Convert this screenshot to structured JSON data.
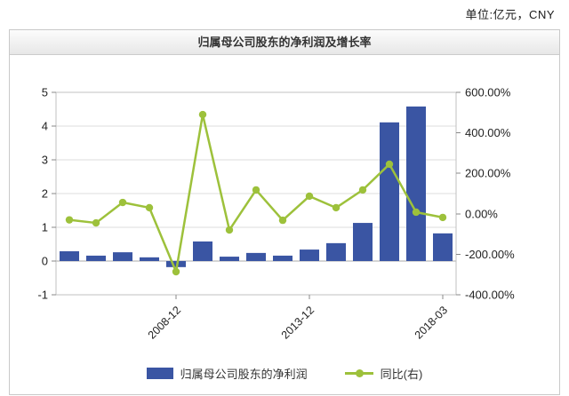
{
  "unit_label": "单位:亿元，CNY",
  "panel": {
    "title": "归属母公司股东的净利润及增长率"
  },
  "legend": {
    "bar_label": "归属母公司股东的净利润",
    "line_label": "同比(右)"
  },
  "colors": {
    "bar": "#3A55A3",
    "line": "#9DC13B",
    "grid": "#DDDDDD",
    "border": "#C0C0C0",
    "zero_line": "#AAAAAA",
    "tick": "#888888",
    "axis_text": "#222222",
    "title_text": "#333333"
  },
  "chart_data": {
    "type": "bar",
    "title": "归属母公司股东的净利润及增长率",
    "categories": [
      "",
      "",
      "",
      "",
      "2008-12",
      "",
      "",
      "",
      "",
      "2013-12",
      "",
      "",
      "",
      "",
      "2018-03"
    ],
    "series": [
      {
        "name": "归属母公司股东的净利润",
        "type": "bar",
        "axis": "left",
        "values": [
          0.29,
          0.16,
          0.26,
          0.11,
          -0.18,
          0.58,
          0.13,
          0.24,
          0.16,
          0.34,
          0.53,
          1.13,
          4.11,
          4.58,
          0.82
        ]
      },
      {
        "name": "同比(右)",
        "type": "line",
        "axis": "right",
        "unit": "%",
        "values": [
          -30,
          -45,
          56,
          30,
          -286,
          490,
          -80,
          118,
          -32,
          87,
          30,
          118,
          245,
          8,
          -18
        ]
      }
    ],
    "left_axis": {
      "min": -1,
      "max": 5,
      "ticks": [
        5,
        4,
        3,
        2,
        1,
        0,
        -1
      ]
    },
    "right_axis": {
      "min": -400,
      "max": 600,
      "tick_labels": [
        "600.00%",
        "400.00%",
        "200.00%",
        "0.00%",
        "-200.00%",
        "-400.00%"
      ]
    },
    "grid": true,
    "legend_position": "bottom"
  }
}
